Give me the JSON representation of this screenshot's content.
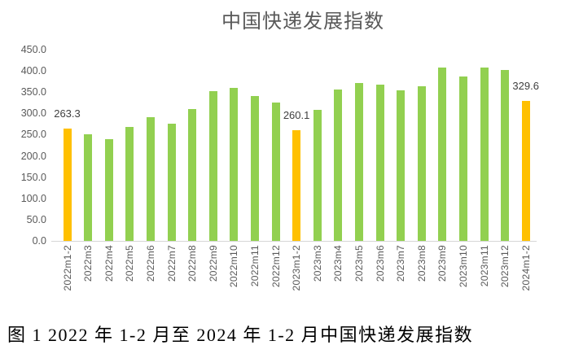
{
  "chart_data": {
    "type": "bar",
    "title": "中国快递发展指数",
    "categories": [
      "2022m1-2",
      "2022m3",
      "2022m4",
      "2022m5",
      "2022m6",
      "2022m7",
      "2022m8",
      "2022m9",
      "2022m10",
      "2022m11",
      "2022m12",
      "2023m1-2",
      "2023m3",
      "2023m4",
      "2023m5",
      "2023m6",
      "2023m7",
      "2023m8",
      "2023m9",
      "2023m10",
      "2023m11",
      "2023m12",
      "2024m1-2"
    ],
    "values": [
      263.3,
      250,
      240,
      269,
      291,
      275,
      311,
      353,
      360,
      340,
      326,
      260.1,
      308,
      356,
      372,
      367,
      354,
      364,
      408,
      386,
      408,
      403,
      329.6
    ],
    "highlight_indices": [
      0,
      11,
      22
    ],
    "data_labels": [
      {
        "index": 0,
        "text": "263.3"
      },
      {
        "index": 11,
        "text": "260.1"
      },
      {
        "index": 22,
        "text": "329.6"
      }
    ],
    "y_ticks": [
      "450.0",
      "400.0",
      "350.0",
      "300.0",
      "250.0",
      "200.0",
      "150.0",
      "100.0",
      "50.0",
      "0.0"
    ],
    "ylim": [
      0,
      450
    ],
    "xlabel": "",
    "ylabel": "",
    "grid": false,
    "legend": false,
    "colors": {
      "bar_default": "#92D050",
      "bar_highlight": "#FFC000",
      "axis_text": "#595959",
      "title_text": "#595959",
      "data_label_text": "#404040",
      "axis_line": "#D6D6D6"
    }
  },
  "caption": {
    "text": "图 1  2022 年 1-2 月至 2024 年 1-2 月中国快递发展指数"
  }
}
